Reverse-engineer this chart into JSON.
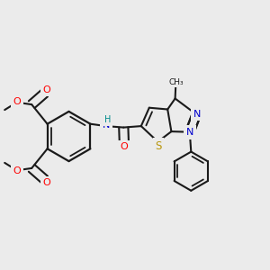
{
  "bg_color": "#ebebeb",
  "bond_color": "#1a1a1a",
  "atom_colors": {
    "O": "#ff0000",
    "N": "#0000cd",
    "S": "#b8960c",
    "H": "#008b8b",
    "C": "#1a1a1a"
  },
  "figsize": [
    3.0,
    3.0
  ],
  "dpi": 100,
  "xlim": [
    0.0,
    1.0
  ],
  "ylim": [
    0.05,
    1.05
  ]
}
